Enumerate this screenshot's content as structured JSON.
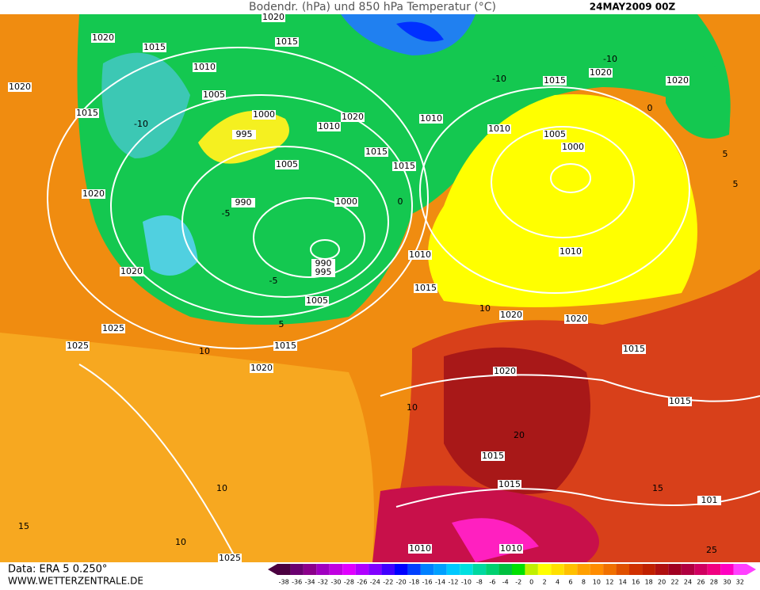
{
  "header": {
    "title": "Bodendr. (hPa) und 850 hPa Temperatur (°C)",
    "run": "24MAY2009 00Z"
  },
  "footer": {
    "source": "Data: ERA 5 0.250°",
    "site": "WWW.WETTERZENTRALE.DE"
  },
  "colorbar": {
    "ticks": [
      -38,
      -36,
      -34,
      -32,
      -30,
      -28,
      -26,
      -24,
      -22,
      -20,
      -18,
      -16,
      -14,
      -12,
      -10,
      -8,
      -6,
      -4,
      -2,
      0,
      2,
      4,
      6,
      8,
      10,
      12,
      14,
      16,
      18,
      20,
      22,
      24,
      26,
      28,
      30,
      32
    ],
    "colors": [
      "#4b0040",
      "#6a0070",
      "#8b008b",
      "#a000c0",
      "#c000e0",
      "#e000ff",
      "#b000ff",
      "#8000ff",
      "#4000ff",
      "#0000ff",
      "#0040ff",
      "#0080ff",
      "#00a0ff",
      "#00c8ff",
      "#00e0e0",
      "#00d8a0",
      "#00d070",
      "#00c040",
      "#00e000",
      "#c0f000",
      "#ffff00",
      "#ffe000",
      "#ffc000",
      "#ffa000",
      "#ff8c00",
      "#f07000",
      "#e05000",
      "#d03000",
      "#c02000",
      "#b01010",
      "#a00020",
      "#b00040",
      "#d00060",
      "#f00080",
      "#ff00c0",
      "#ff40ff"
    ]
  },
  "isobar_labels": [
    "1020",
    "1015",
    "1010",
    "1005",
    "1000",
    "995",
    "990",
    "1000",
    "990",
    "995",
    "1005",
    "1015",
    "1020",
    "1020",
    "1025",
    "1025",
    "1015",
    "1020",
    "1015",
    "1020",
    "1010",
    "1015",
    "1015",
    "1005",
    "1010",
    "1010",
    "1005",
    "1000",
    "1010",
    "1015",
    "1010",
    "1020",
    "1020",
    "1015",
    "1020",
    "1015",
    "1015",
    "1015",
    "1010",
    "1010",
    "1025",
    "1020",
    "1020",
    "1015",
    "1020",
    "1020",
    "101"
  ],
  "isotherm_labels": [
    "-10",
    "-5",
    "0",
    "5",
    "10",
    "-10",
    "0",
    "5",
    "5",
    "10",
    "15",
    "20",
    "25",
    "10",
    "15",
    "10",
    "-5",
    "-10",
    "10"
  ]
}
